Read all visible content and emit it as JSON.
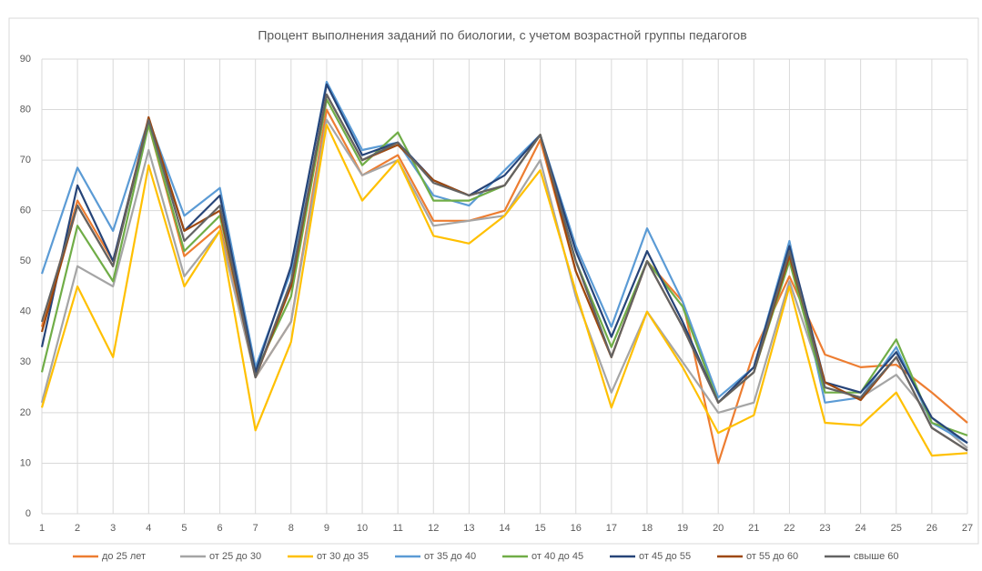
{
  "chart_data": {
    "type": "line",
    "title": "Процент выполнения заданий по биологии, с учетом возрастной группы педагогов",
    "categories": [
      "1",
      "2",
      "3",
      "4",
      "5",
      "6",
      "7",
      "8",
      "9",
      "10",
      "11",
      "12",
      "13",
      "14",
      "15",
      "16",
      "17",
      "18",
      "19",
      "20",
      "21",
      "22",
      "23",
      "24",
      "25",
      "26",
      "27"
    ],
    "ylim": [
      0,
      90
    ],
    "yticks": [
      0,
      10,
      20,
      30,
      40,
      50,
      60,
      70,
      80,
      90
    ],
    "grid": true,
    "legend": "bottom",
    "series": [
      {
        "name": "до 25 лет",
        "color": "#ed7d31",
        "values": [
          37,
          62,
          50,
          77,
          51,
          57,
          27,
          38,
          80,
          67,
          71,
          58,
          58,
          60,
          74,
          48,
          31,
          50,
          42,
          10,
          32,
          47,
          31.5,
          29,
          29.5,
          24,
          18
        ]
      },
      {
        "name": "от 25 до 30",
        "color": "#a5a5a5",
        "values": [
          22,
          49,
          45,
          72,
          47,
          56,
          27,
          38,
          78,
          67,
          70,
          57,
          58,
          59,
          70,
          43,
          24,
          40,
          30,
          20,
          22,
          46,
          25,
          23,
          27.5,
          19,
          13
        ]
      },
      {
        "name": "от 30 до 35",
        "color": "#ffc000",
        "values": [
          21,
          45,
          31,
          69,
          45,
          56,
          16.5,
          34,
          77,
          62,
          70,
          55,
          53.5,
          59,
          68,
          44,
          21,
          40,
          29,
          16,
          19.5,
          45,
          18,
          17.5,
          24,
          11.5,
          12
        ]
      },
      {
        "name": "от 35 до 40",
        "color": "#5b9bd5",
        "values": [
          47.5,
          68.5,
          56,
          78,
          59,
          64.5,
          29,
          48,
          85.5,
          72,
          73.5,
          63,
          61,
          68,
          75,
          53,
          37,
          56.5,
          42,
          23,
          29,
          54,
          22,
          23,
          33,
          18,
          14
        ]
      },
      {
        "name": "от 40 до 45",
        "color": "#70ad47",
        "values": [
          28,
          57,
          46,
          77,
          52,
          59,
          28,
          43,
          82,
          69,
          75.5,
          62,
          62,
          65,
          75,
          50,
          33,
          50,
          41,
          22,
          28,
          50,
          24,
          24,
          34.5,
          18,
          15.5
        ]
      },
      {
        "name": "от 45 до 55",
        "color": "#264478",
        "values": [
          33,
          65,
          50,
          78,
          56,
          63,
          28,
          49,
          85,
          71,
          73.5,
          66,
          63,
          67,
          75,
          52,
          35,
          52,
          38,
          22,
          29,
          53,
          26,
          24,
          32,
          19,
          14
        ]
      },
      {
        "name": "от 55 до 60",
        "color": "#9e480e",
        "values": [
          36,
          61,
          49,
          78.5,
          56,
          60,
          27,
          45,
          83,
          70,
          73,
          66,
          63,
          65,
          75,
          48,
          31,
          50,
          37,
          22,
          28,
          51,
          26,
          22.5,
          31,
          17,
          12.5
        ]
      },
      {
        "name": "свыше 60",
        "color": "#636363",
        "values": [
          38,
          61,
          49,
          78,
          54,
          61,
          27,
          46,
          83,
          70,
          73.5,
          65.5,
          63,
          65,
          75,
          50,
          31,
          50,
          37,
          22,
          28,
          52,
          25,
          23,
          31,
          17,
          12.5
        ]
      }
    ]
  }
}
